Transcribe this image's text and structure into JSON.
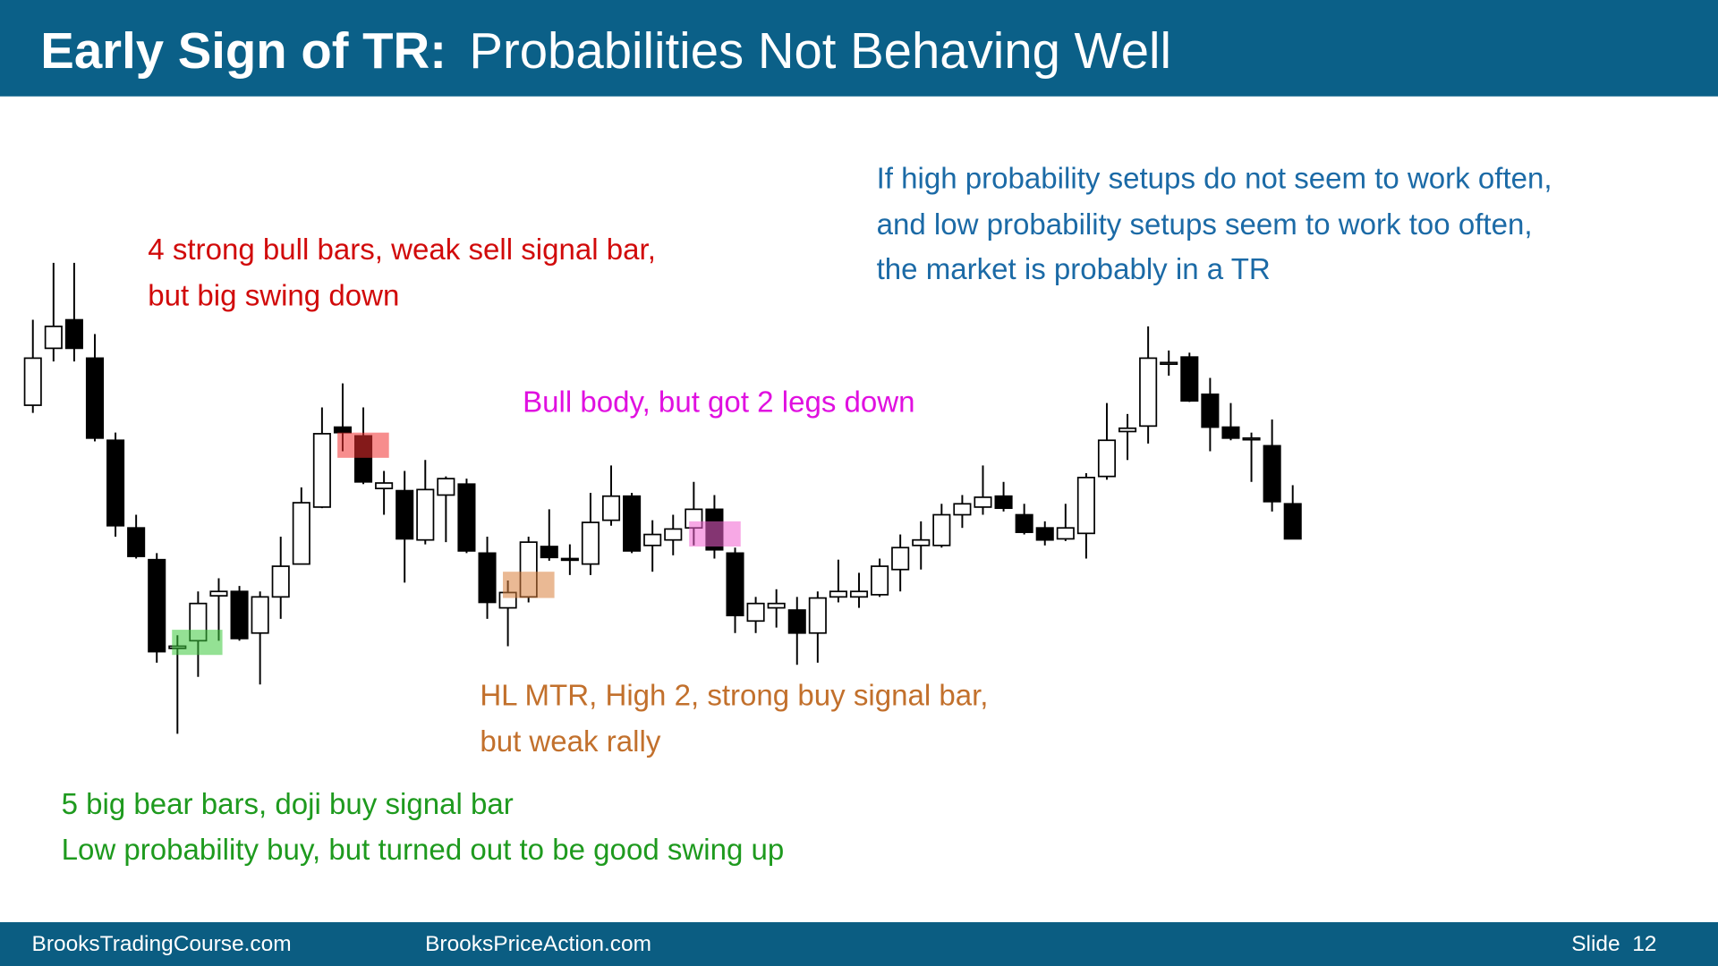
{
  "chart_data": {
    "type": "candlestick",
    "title": "Early Sign of TR:",
    "subtitle": "Probabilities Not Behaving Well",
    "annotations": [
      {
        "lines": [
          "If high probability setups do not seem to work often,",
          "and low probability setups seem to work too often,",
          "the market is probably in a TR"
        ]
      },
      {
        "lines": [
          "4 strong bull bars, weak sell signal bar,",
          "but big swing down"
        ]
      },
      {
        "lines": [
          "Bull body, but got 2 legs down"
        ]
      },
      {
        "lines": [
          "HL MTR, High 2, strong buy signal bar,",
          "but weak rally"
        ]
      },
      {
        "lines": [
          "5 big bear bars, doji buy signal bar",
          "Low probability buy, but turned out to be good swing up"
        ]
      }
    ],
    "footer": {
      "left": "BrooksTradingCourse.com",
      "middle": "BrooksPriceAction.com",
      "slide": "Slide  12"
    },
    "ylim": [
      20,
      470
    ],
    "bull_color": "#ffffff",
    "bear_color": "#000000",
    "open": [
      330,
      382,
      408,
      373,
      298,
      218,
      189,
      108,
      115,
      156,
      160,
      122,
      155,
      185,
      237,
      310,
      302,
      254,
      252,
      207,
      248,
      258,
      195,
      145,
      155,
      201,
      190,
      185,
      225,
      247,
      202,
      207,
      218,
      235,
      195,
      133,
      145,
      143,
      122,
      155,
      155,
      157,
      180,
      202,
      202,
      230,
      237,
      247,
      230,
      218,
      208,
      213,
      265,
      306,
      311,
      368,
      374,
      340,
      310,
      299,
      293,
      240
    ],
    "high": [
      408,
      460,
      460,
      395,
      305,
      230,
      195,
      120,
      160,
      172,
      165,
      160,
      210,
      255,
      328,
      350,
      328,
      270,
      270,
      280,
      265,
      263,
      210,
      170,
      210,
      235,
      203,
      250,
      275,
      250,
      225,
      230,
      260,
      248,
      200,
      155,
      162,
      155,
      160,
      189,
      177,
      190,
      212,
      224,
      240,
      248,
      275,
      260,
      240,
      224,
      240,
      268,
      332,
      322,
      402,
      380,
      378,
      355,
      332,
      305,
      317,
      257
    ],
    "low": [
      323,
      370,
      370,
      297,
      210,
      190,
      95,
      30,
      82,
      115,
      115,
      75,
      135,
      185,
      236,
      288,
      258,
      230,
      168,
      203,
      205,
      195,
      135,
      110,
      150,
      188,
      175,
      175,
      220,
      195,
      178,
      193,
      202,
      190,
      122,
      122,
      127,
      93,
      95,
      150,
      145,
      155,
      160,
      180,
      200,
      218,
      230,
      233,
      212,
      202,
      206,
      190,
      262,
      280,
      295,
      357,
      333,
      288,
      298,
      260,
      233,
      208
    ],
    "close": [
      373,
      402,
      382,
      300,
      220,
      192,
      105,
      110,
      149,
      160,
      117,
      155,
      183,
      241,
      304,
      305,
      260,
      259,
      208,
      253,
      263,
      197,
      150,
      159,
      205,
      191,
      189,
      223,
      247,
      197,
      212,
      217,
      235,
      198,
      138,
      149,
      149,
      122,
      154,
      160,
      160,
      183,
      200,
      207,
      230,
      240,
      246,
      236,
      214,
      207,
      218,
      264,
      298,
      309,
      373,
      369,
      334,
      310,
      300,
      300,
      242,
      208
    ]
  }
}
